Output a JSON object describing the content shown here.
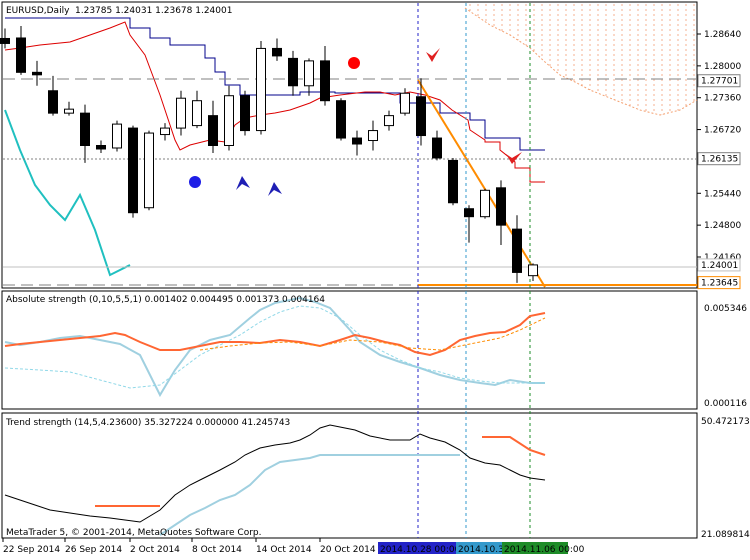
{
  "chart_data": {
    "type": "candlestick",
    "symbol": "EURUSD,Daily",
    "ohlc_text": "1.23785 1.24031 1.23678 1.24001",
    "footer": "MetaTrader 5, © 2001-2014, MetaQuotes Software Corp.",
    "price_axis": {
      "range": [
        1.232,
        1.292
      ],
      "ticks": [
        "1.28640",
        "1.28000",
        "1.27360",
        "1.26720",
        "1.25440",
        "1.24800",
        "1.24160"
      ],
      "tick_values": [
        1.2864,
        1.28,
        1.2736,
        1.2672,
        1.2544,
        1.248,
        1.2416
      ]
    },
    "price_markers": [
      {
        "label": "1.27701",
        "value": 1.27701,
        "style": "dashed-gray"
      },
      {
        "label": "1.26135",
        "value": 1.26135,
        "style": "dotted-gray"
      },
      {
        "label": "1.24001",
        "value": 1.24001,
        "style": "current"
      },
      {
        "label": "1.23645",
        "value": 1.23645,
        "style": "orange"
      }
    ],
    "date_labels": [
      "22 Sep 2014",
      "26 Sep 2014",
      "2 Oct 2014",
      "8 Oct 2014",
      "14 Oct 2014",
      "20 Oct 2014"
    ],
    "vline_labels": [
      {
        "label": "2014.10.28 00:00",
        "color": "#2323c8"
      },
      {
        "label": "2014.10.31 00:00",
        "color": "#3399cc"
      },
      {
        "label": "2014.11.06 00:00",
        "color": "#1e8c28"
      }
    ],
    "candles": [
      {
        "o": 1.2855,
        "h": 1.2875,
        "l": 1.2835,
        "c": 1.2845
      },
      {
        "o": 1.2856,
        "h": 1.288,
        "l": 1.2782,
        "c": 1.2787
      },
      {
        "o": 1.2787,
        "h": 1.281,
        "l": 1.276,
        "c": 1.2782
      },
      {
        "o": 1.275,
        "h": 1.278,
        "l": 1.27,
        "c": 1.2705
      },
      {
        "o": 1.2705,
        "h": 1.2728,
        "l": 1.27,
        "c": 1.2713
      },
      {
        "o": 1.2705,
        "h": 1.2722,
        "l": 1.2605,
        "c": 1.264
      },
      {
        "o": 1.264,
        "h": 1.265,
        "l": 1.2625,
        "c": 1.2633
      },
      {
        "o": 1.2635,
        "h": 1.269,
        "l": 1.2628,
        "c": 1.2683
      },
      {
        "o": 1.2675,
        "h": 1.268,
        "l": 1.2495,
        "c": 1.2505
      },
      {
        "o": 1.2515,
        "h": 1.267,
        "l": 1.251,
        "c": 1.2665
      },
      {
        "o": 1.2662,
        "h": 1.2685,
        "l": 1.265,
        "c": 1.2675
      },
      {
        "o": 1.2675,
        "h": 1.275,
        "l": 1.266,
        "c": 1.2735
      },
      {
        "o": 1.268,
        "h": 1.275,
        "l": 1.2675,
        "c": 1.273
      },
      {
        "o": 1.27,
        "h": 1.273,
        "l": 1.2625,
        "c": 1.264
      },
      {
        "o": 1.264,
        "h": 1.276,
        "l": 1.263,
        "c": 1.274
      },
      {
        "o": 1.274,
        "h": 1.275,
        "l": 1.266,
        "c": 1.267
      },
      {
        "o": 1.267,
        "h": 1.285,
        "l": 1.2662,
        "c": 1.2835
      },
      {
        "o": 1.2835,
        "h": 1.2855,
        "l": 1.281,
        "c": 1.282
      },
      {
        "o": 1.2815,
        "h": 1.283,
        "l": 1.274,
        "c": 1.276
      },
      {
        "o": 1.276,
        "h": 1.2815,
        "l": 1.274,
        "c": 1.281
      },
      {
        "o": 1.281,
        "h": 1.284,
        "l": 1.272,
        "c": 1.273
      },
      {
        "o": 1.273,
        "h": 1.2735,
        "l": 1.265,
        "c": 1.2655
      },
      {
        "o": 1.2655,
        "h": 1.267,
        "l": 1.262,
        "c": 1.2643
      },
      {
        "o": 1.265,
        "h": 1.269,
        "l": 1.263,
        "c": 1.267
      },
      {
        "o": 1.268,
        "h": 1.271,
        "l": 1.267,
        "c": 1.27
      },
      {
        "o": 1.2705,
        "h": 1.2755,
        "l": 1.27,
        "c": 1.2745
      },
      {
        "o": 1.2738,
        "h": 1.2775,
        "l": 1.264,
        "c": 1.266
      },
      {
        "o": 1.2655,
        "h": 1.267,
        "l": 1.261,
        "c": 1.2615
      },
      {
        "o": 1.261,
        "h": 1.2615,
        "l": 1.252,
        "c": 1.2525
      },
      {
        "o": 1.2513,
        "h": 1.252,
        "l": 1.2445,
        "c": 1.2497
      },
      {
        "o": 1.2497,
        "h": 1.2553,
        "l": 1.2493,
        "c": 1.255
      },
      {
        "o": 1.2555,
        "h": 1.257,
        "l": 1.244,
        "c": 1.248
      },
      {
        "o": 1.2472,
        "h": 1.25,
        "l": 1.2364,
        "c": 1.2385
      },
      {
        "o": 1.23785,
        "h": 1.24031,
        "l": 1.23678,
        "c": 1.24001
      }
    ],
    "indicator_1": {
      "label": "Absolute strength (0,10,5,5,1) 0.001402 0.004495 0.001373 0.004164",
      "axis_ticks": [
        "0.005346",
        "0.000116"
      ],
      "range": [
        0.000116,
        0.005346
      ]
    },
    "indicator_2": {
      "label": "Trend strength (14,5,4.23600) 35.327224 0.000000 41.245743",
      "axis_ticks": [
        "50.472173",
        "21.089814"
      ],
      "range": [
        21.089814,
        50.472173
      ]
    },
    "colors": {
      "red_line": "#dd0000",
      "blue_line": "#00008b",
      "cyan_line": "#20c0c0",
      "orange": "#ff8c00",
      "coral": "#ff6633",
      "light_blue": "#a0d0e0"
    }
  }
}
